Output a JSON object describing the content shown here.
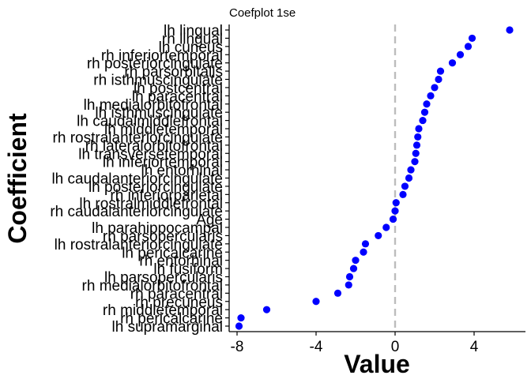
{
  "chart_data": {
    "type": "scatter",
    "title": "Coefplot 1se",
    "xlabel": "Value",
    "ylabel": "Coefficient",
    "xlim": [
      -8.3,
      6.4
    ],
    "xticks": [
      -8,
      -4,
      0,
      4
    ],
    "xtick_labels": [
      "-8",
      "-4",
      "0",
      "4"
    ],
    "reference_line_x": 0,
    "grid": false,
    "legend": "none",
    "point_color": "#0000FF",
    "reference_line_color": "#BDBDBD",
    "categories": [
      "lh lingual",
      "rh lingual",
      "lh cuneus",
      "rh inferiortemporal",
      "rh posteriorcingulate",
      "rh parsorbitalis",
      "rh isthmuscingulate",
      "lh postcentral",
      "lh paracentral",
      "lh medialorbitofrontal",
      "lh isthmuscingulate",
      "lh caudalmiddlefrontal",
      "lh middletemporal",
      "rh rostralanteriorcingulate",
      "rh lateralorbitofrontal",
      "lh transversetemporal",
      "lh inferiortemporal",
      "lh entorhinal",
      "lh caudalanteriorcingulate",
      "lh posteriorcingulate",
      "rh inferiorparietal",
      "lh rostralmiddlefrontal",
      "rh caudalanteriorcingulate",
      "Age",
      "lh parahippocampal",
      "rh parsopercularis",
      "lh rostralanteriorcingulate",
      "lh pericalcarine",
      "rh entorhinal",
      "lh fusiform",
      "lh parsopercularis",
      "rh medialorbitofrontal",
      "rh paracentral",
      "rh precuneus",
      "rh middletemporal",
      "rh pericalcarine",
      "lh supramarginal"
    ],
    "values": [
      5.8,
      3.9,
      3.7,
      3.3,
      2.9,
      2.3,
      2.2,
      2.0,
      1.8,
      1.6,
      1.5,
      1.4,
      1.2,
      1.15,
      1.1,
      1.05,
      1.0,
      0.8,
      0.7,
      0.5,
      0.4,
      0.05,
      0.0,
      -0.1,
      -0.45,
      -0.85,
      -1.5,
      -1.6,
      -2.0,
      -2.1,
      -2.3,
      -2.35,
      -2.9,
      -4.0,
      -6.5,
      -7.8,
      -7.9
    ]
  }
}
